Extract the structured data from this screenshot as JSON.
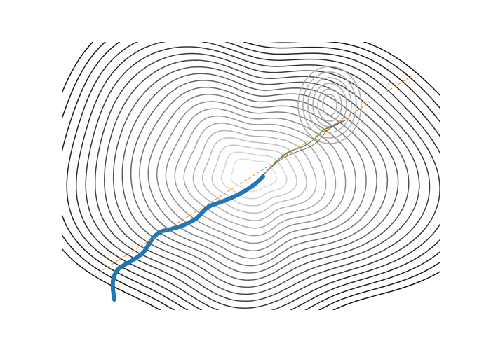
{
  "chart_data": {
    "type": "contour"
  }
}
